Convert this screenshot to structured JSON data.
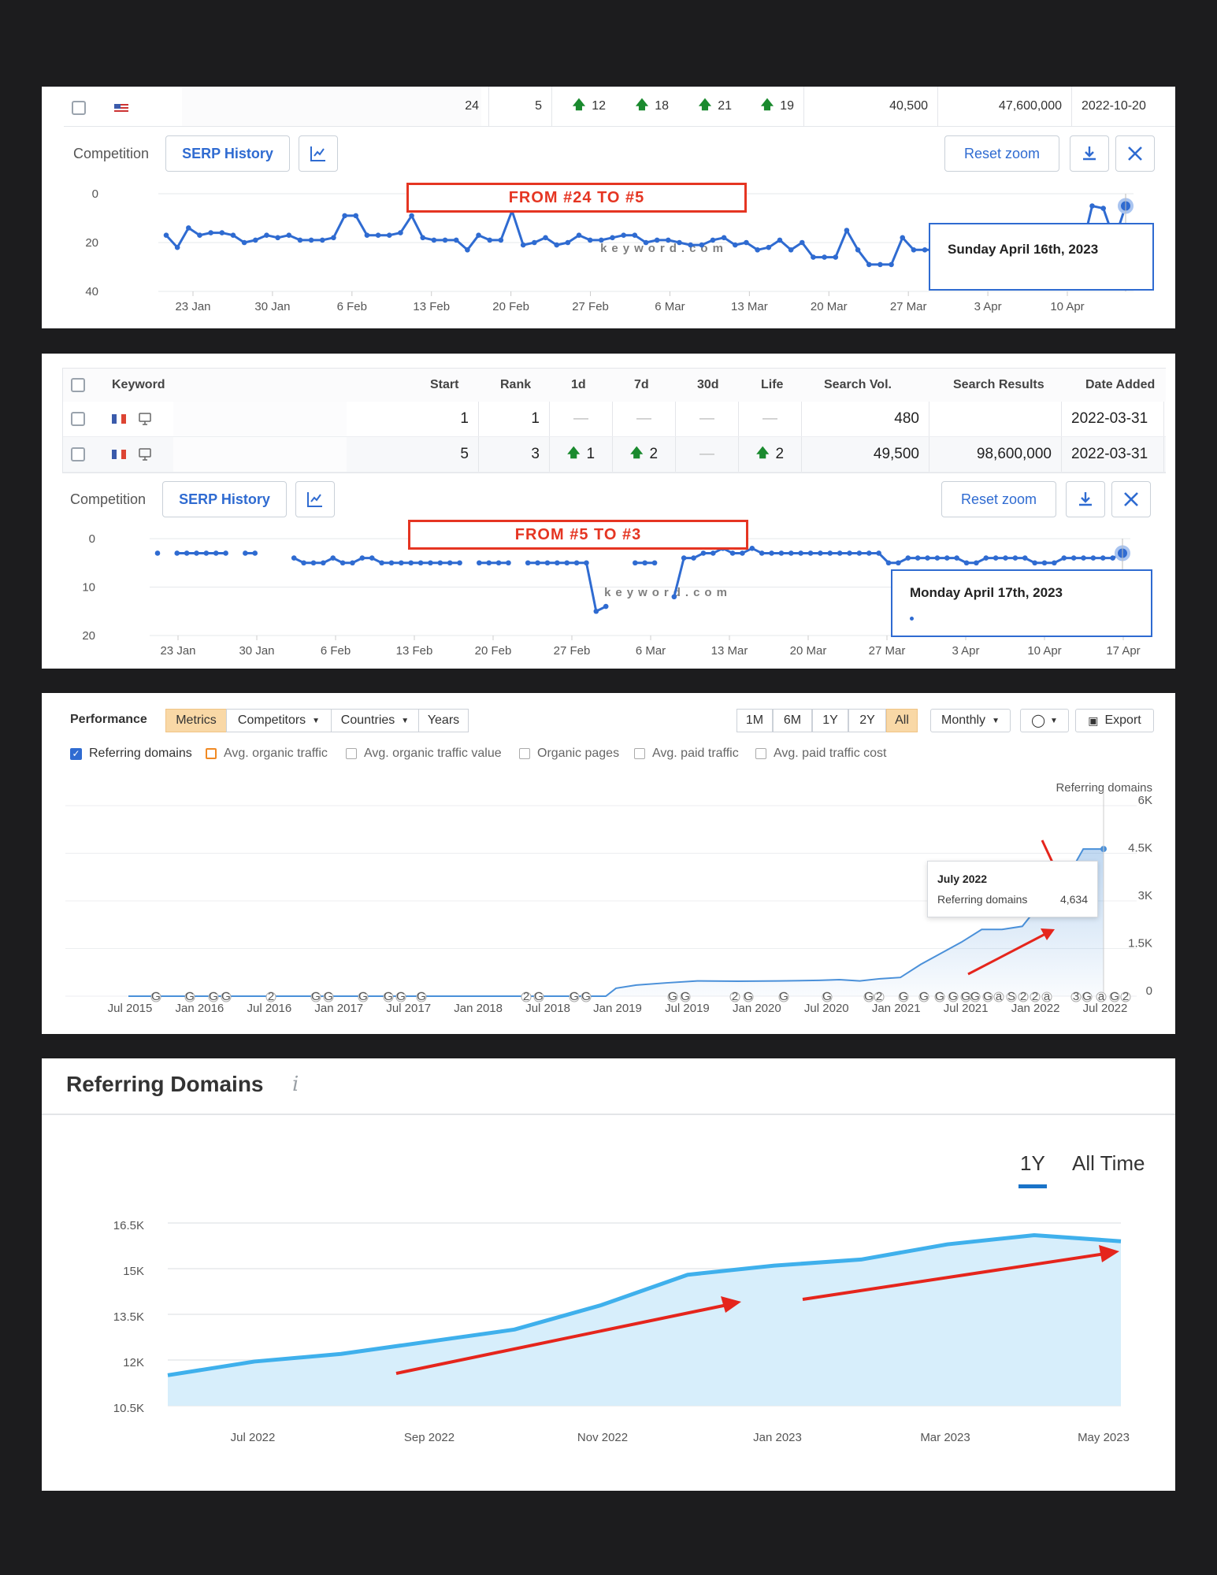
{
  "panel1": {
    "row": {
      "start": "24",
      "rank": "5",
      "d1": "12",
      "d7": "18",
      "d30": "21",
      "life": "19",
      "search_vol": "40,500",
      "search_results": "47,600,000",
      "date_added": "2022-10-20"
    },
    "competition_label": "Competition",
    "serp_history_label": "SERP History",
    "reset_zoom_label": "Reset zoom",
    "annotation": "FROM #24 TO #5",
    "tooltip": "Sunday April 16th, 2023",
    "watermark": "keyword.com"
  },
  "panel2": {
    "headers": {
      "keyword": "Keyword",
      "start": "Start",
      "rank": "Rank",
      "d1": "1d",
      "d7": "7d",
      "d30": "30d",
      "life": "Life",
      "search_vol": "Search Vol.",
      "search_results": "Search Results",
      "date_added": "Date Added"
    },
    "rows": [
      {
        "start": "1",
        "rank": "1",
        "d1": "—",
        "d7": "—",
        "d30": "—",
        "life": "—",
        "search_vol": "480",
        "search_results": "",
        "date_added": "2022-03-31"
      },
      {
        "start": "5",
        "rank": "3",
        "d1": "1",
        "d7": "2",
        "d30": "—",
        "life": "2",
        "search_vol": "49,500",
        "search_results": "98,600,000",
        "date_added": "2022-03-31"
      }
    ],
    "competition_label": "Competition",
    "serp_history_label": "SERP History",
    "reset_zoom_label": "Reset zoom",
    "annotation": "FROM #5 TO #3",
    "tooltip": "Monday April 17th, 2023",
    "watermark": "keyword.com"
  },
  "panel3": {
    "title": "Performance",
    "tabs": [
      "Metrics",
      "Competitors",
      "Countries",
      "Years"
    ],
    "ranges": [
      "1M",
      "6M",
      "1Y",
      "2Y",
      "All"
    ],
    "interval": "Monthly",
    "export_label": "Export",
    "metrics": [
      "Referring domains",
      "Avg. organic traffic",
      "Avg. organic traffic value",
      "Organic pages",
      "Avg. paid traffic",
      "Avg. paid traffic cost"
    ],
    "axis_title": "Referring domains",
    "tooltip": {
      "date": "July 2022",
      "label": "Referring domains",
      "value": "4,634"
    }
  },
  "panel4": {
    "title": "Referring Domains",
    "range_tabs": [
      "1Y",
      "All Time"
    ]
  },
  "chart_data": [
    {
      "type": "line",
      "ylabel": "",
      "ylim": [
        0,
        40
      ],
      "y_inverted": true,
      "yticks": [
        "0",
        "20",
        "40"
      ],
      "xticks": [
        "23 Jan",
        "30 Jan",
        "6 Feb",
        "13 Feb",
        "20 Feb",
        "27 Feb",
        "6 Mar",
        "13 Mar",
        "20 Mar",
        "27 Mar",
        "3 Apr",
        "10 Apr"
      ],
      "values": [
        17,
        22,
        14,
        17,
        16,
        16,
        17,
        20,
        19,
        17,
        18,
        17,
        19,
        19,
        19,
        18,
        9,
        9,
        17,
        17,
        17,
        16,
        9,
        18,
        19,
        19,
        19,
        23,
        17,
        19,
        19,
        7,
        21,
        20,
        18,
        21,
        20,
        17,
        19,
        19,
        18,
        17,
        17,
        20,
        19,
        19,
        20,
        21,
        21,
        19,
        18,
        21,
        20,
        23,
        22,
        19,
        23,
        20,
        26,
        26,
        26,
        15,
        23,
        29,
        29,
        29,
        18,
        23,
        23,
        23,
        22,
        22,
        22,
        22,
        22,
        22,
        22,
        22,
        21,
        21,
        21,
        24,
        24,
        5,
        6,
        19,
        5
      ]
    },
    {
      "type": "line",
      "ylabel": "",
      "ylim": [
        0,
        20
      ],
      "y_inverted": true,
      "yticks": [
        "0",
        "10",
        "20"
      ],
      "xticks": [
        "23 Jan",
        "30 Jan",
        "6 Feb",
        "13 Feb",
        "20 Feb",
        "27 Feb",
        "6 Mar",
        "13 Mar",
        "20 Mar",
        "27 Mar",
        "3 Apr",
        "10 Apr",
        "17 Apr"
      ],
      "values": [
        3,
        null,
        3,
        3,
        3,
        3,
        3,
        3,
        null,
        3,
        3,
        null,
        null,
        null,
        4,
        5,
        5,
        5,
        4,
        5,
        5,
        4,
        4,
        5,
        5,
        5,
        5,
        5,
        5,
        5,
        5,
        5,
        null,
        5,
        5,
        5,
        5,
        null,
        5,
        5,
        5,
        5,
        5,
        5,
        5,
        15,
        14,
        null,
        null,
        5,
        5,
        5,
        null,
        12,
        4,
        4,
        3,
        3,
        2,
        3,
        3,
        2,
        3,
        3,
        3,
        3,
        3,
        3,
        3,
        3,
        3,
        3,
        3,
        3,
        3,
        5,
        5,
        4,
        4,
        4,
        4,
        4,
        4,
        5,
        5,
        4,
        4,
        4,
        4,
        4,
        5,
        5,
        5,
        4,
        4,
        4,
        4,
        4,
        4,
        3
      ]
    },
    {
      "type": "area",
      "title": "",
      "ylabel": "Referring domains",
      "ylim": [
        0,
        6000
      ],
      "yticks": [
        "0",
        "1.5K",
        "3K",
        "4.5K",
        "6K"
      ],
      "xticks": [
        "Jul 2015",
        "Jan 2016",
        "Jul 2016",
        "Jan 2017",
        "Jul 2017",
        "Jan 2018",
        "Jul 2018",
        "Jan 2019",
        "Jul 2019",
        "Jan 2020",
        "Jul 2020",
        "Jan 2021",
        "Jul 2021",
        "Jan 2022",
        "Jul 2022"
      ],
      "series": [
        {
          "name": "Referring domains",
          "points": [
            [
              0,
              0
            ],
            [
              47,
              0
            ],
            [
              48,
              250
            ],
            [
              50,
              350
            ],
            [
              53,
              420
            ],
            [
              56,
              480
            ],
            [
              60,
              470
            ],
            [
              64,
              480
            ],
            [
              68,
              500
            ],
            [
              70,
              520
            ],
            [
              72,
              480
            ],
            [
              74,
              550
            ],
            [
              76,
              590
            ],
            [
              78,
              1000
            ],
            [
              80,
              1350
            ],
            [
              82,
              1700
            ],
            [
              84,
              2100
            ],
            [
              86,
              2100
            ],
            [
              88,
              2200
            ],
            [
              90,
              3000
            ],
            [
              92,
              3500
            ],
            [
              94,
              4634
            ],
            [
              96,
              4634
            ]
          ]
        }
      ]
    },
    {
      "type": "area",
      "title": "",
      "ylim": [
        10500,
        16500
      ],
      "yticks": [
        "10.5K",
        "12K",
        "13.5K",
        "15K",
        "16.5K"
      ],
      "xticks": [
        "Jul 2022",
        "Sep 2022",
        "Nov 2022",
        "Jan 2023",
        "Mar 2023",
        "May 2023"
      ],
      "values": [
        11500,
        11950,
        12200,
        12600,
        13000,
        13800,
        14800,
        15100,
        15300,
        15800,
        16100,
        15900
      ]
    }
  ]
}
